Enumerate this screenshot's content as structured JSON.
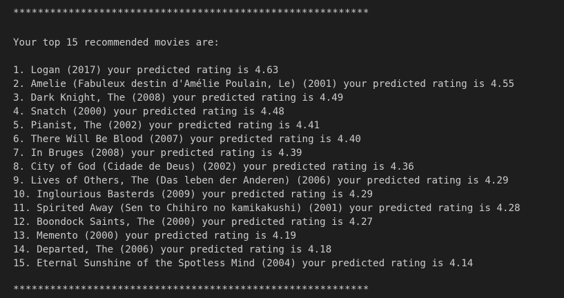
{
  "terminal": {
    "separator_top": "**********************************************************",
    "heading": "Your top 15 recommended movies are:",
    "lines": [
      "1. Logan (2017) your predicted rating is 4.63",
      "2. Amelie (Fabuleux destin d'Amélie Poulain, Le) (2001) your predicted rating is 4.55",
      "3. Dark Knight, The (2008) your predicted rating is 4.49",
      "4. Snatch (2000) your predicted rating is 4.48",
      "5. Pianist, The (2002) your predicted rating is 4.41",
      "6. There Will Be Blood (2007) your predicted rating is 4.40",
      "7. In Bruges (2008) your predicted rating is 4.39",
      "8. City of God (Cidade de Deus) (2002) your predicted rating is 4.36",
      "9. Lives of Others, The (Das leben der Anderen) (2006) your predicted rating is 4.29",
      "10. Inglourious Basterds (2009) your predicted rating is 4.29",
      "11. Spirited Away (Sen to Chihiro no kamikakushi) (2001) your predicted rating is 4.28",
      "12. Boondock Saints, The (2000) your predicted rating is 4.27",
      "13. Memento (2000) your predicted rating is 4.19",
      "14. Departed, The (2006) your predicted rating is 4.18",
      "15. Eternal Sunshine of the Spotless Mind (2004) your predicted rating is 4.14"
    ],
    "separator_bottom": "**********************************************************"
  }
}
